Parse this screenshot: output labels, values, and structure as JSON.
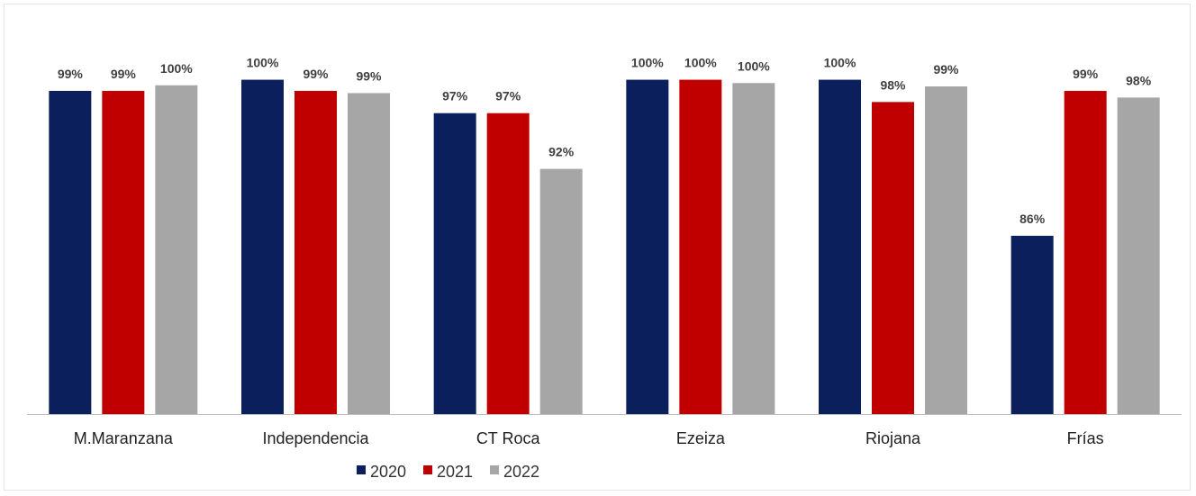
{
  "chart_data": {
    "type": "bar",
    "categories": [
      "M.Maranzana",
      "Independencia",
      "CT Roca",
      "Ezeiza",
      "Riojana",
      "Frías"
    ],
    "series": [
      {
        "name": "2020",
        "color": "#0b1f5c",
        "values": [
          99,
          100,
          97,
          100,
          100,
          86
        ],
        "labels": [
          "99%",
          "100%",
          "97%",
          "100%",
          "100%",
          "86%"
        ]
      },
      {
        "name": "2021",
        "color": "#c00000",
        "values": [
          99,
          99,
          97,
          100,
          98,
          99
        ],
        "labels": [
          "99%",
          "99%",
          "97%",
          "100%",
          "98%",
          "99%"
        ]
      },
      {
        "name": "2022",
        "color": "#a6a6a6",
        "values": [
          99.5,
          98.8,
          92,
          99.7,
          99.4,
          98.4
        ],
        "labels": [
          "100%",
          "99%",
          "92%",
          "100%",
          "99%",
          "98%"
        ]
      }
    ],
    "ylim": [
      70,
      101.5
    ],
    "grid": false,
    "legend": "bottom"
  }
}
